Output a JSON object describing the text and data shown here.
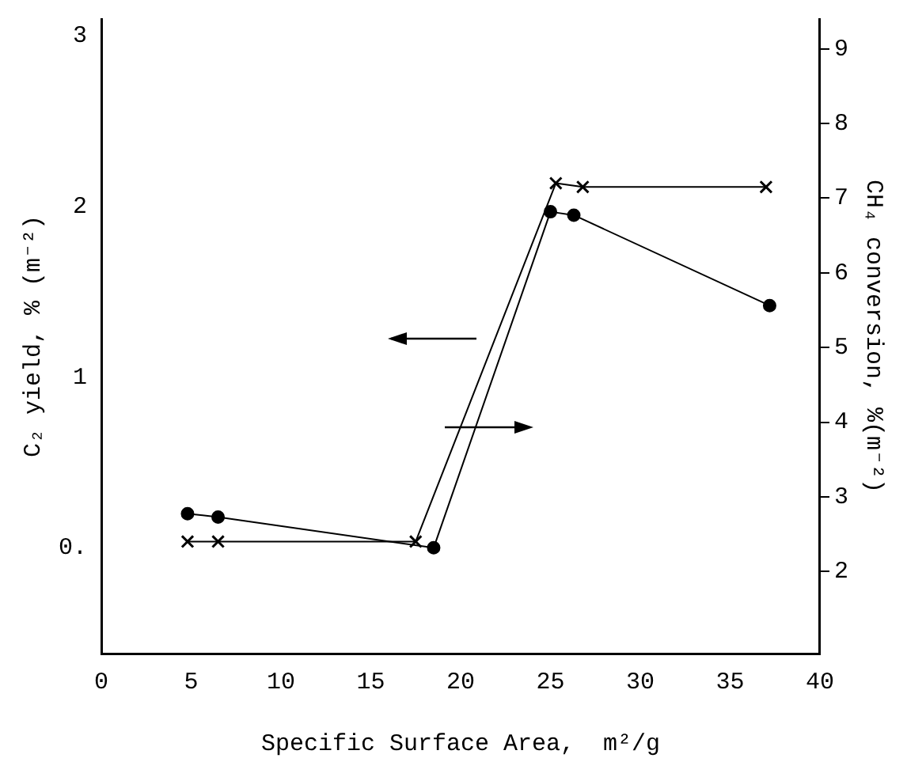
{
  "chart_data": {
    "type": "line",
    "xlabel": "Specific Surface Area,  m²/g",
    "ylabel": "C₂ yield, % (m⁻²)",
    "y2label": "CH₄ conversion, %(m⁻²)",
    "xlim": [
      0,
      40
    ],
    "xticks": [
      0,
      5,
      10,
      15,
      20,
      25,
      30,
      35,
      40
    ],
    "ylim": [
      -0.62,
      3.1
    ],
    "yticks": [
      {
        "value": 0,
        "label": "0."
      },
      1,
      2,
      3
    ],
    "y2lim": [
      0.9,
      9.4
    ],
    "y2ticks": [
      2,
      3,
      4,
      5,
      6,
      7,
      8,
      9
    ],
    "grid": false,
    "legend": false,
    "series": [
      {
        "color": "#000000",
        "marker": "circle",
        "x": [
          4.8,
          6.5,
          18.5,
          25,
          26.3,
          37.2
        ],
        "values": [
          0.2,
          0.18,
          0.0,
          1.97,
          1.95,
          1.42
        ]
      },
      {
        "color": "#000000",
        "marker": "cross",
        "axis": "y2",
        "x": [
          4.8,
          6.5,
          17.5,
          25.3,
          26.8,
          37
        ],
        "values": [
          2.4,
          2.4,
          2.4,
          7.2,
          7.15,
          7.15
        ]
      }
    ]
  }
}
